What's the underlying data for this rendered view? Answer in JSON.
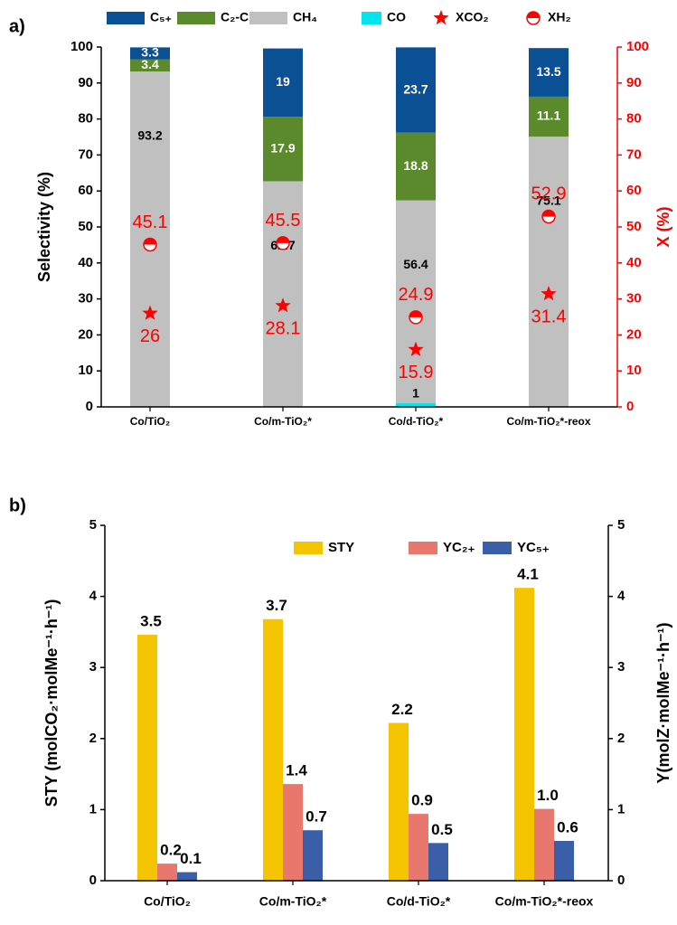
{
  "chart_data": [
    {
      "type": "stacked_bar",
      "panel_label": "a)",
      "categories": [
        "Co/TiO₂",
        "Co/m-TiO₂*",
        "Co/d-TiO₂*",
        "Co/m-TiO₂*-reox"
      ],
      "series": [
        {
          "name": "CO",
          "color": "#00e5ee",
          "label_color": "#000000",
          "values": [
            0,
            0,
            1,
            0
          ]
        },
        {
          "name": "CH₄",
          "color": "#c0c0c0",
          "label_color": "#000000",
          "values": [
            93.2,
            62.7,
            56.4,
            75.1
          ]
        },
        {
          "name": "C₂-C₄",
          "color": "#5b8a2d",
          "label_color": "#ffffff",
          "values": [
            3.4,
            17.9,
            18.8,
            11.1
          ]
        },
        {
          "name": "C₅₊",
          "color": "#0b4f95",
          "label_color": "#ffffff",
          "values": [
            3.3,
            19,
            23.7,
            13.5
          ]
        },
        {
          "name": "XCO₂",
          "type": "scatter",
          "axis": "y2",
          "marker": "star",
          "color": "#ff0000",
          "values": [
            26,
            28.1,
            15.9,
            31.4
          ]
        },
        {
          "name": "XH₂",
          "type": "scatter",
          "axis": "y2",
          "marker": "half-circle",
          "color": "#ff0000",
          "values": [
            45.1,
            45.5,
            24.9,
            52.9
          ]
        }
      ],
      "ylabel": "Selectivity (%)",
      "y2label": "X (%)",
      "y2color": "#ff0000",
      "ylim": [
        0,
        100
      ],
      "yticks": [
        0,
        10,
        20,
        30,
        40,
        50,
        60,
        70,
        80,
        90,
        100
      ],
      "y2lim": [
        0,
        100
      ],
      "y2ticks": [
        0,
        10,
        20,
        30,
        40,
        50,
        60,
        70,
        80,
        90,
        100
      ]
    },
    {
      "type": "bar",
      "panel_label": "b)",
      "categories": [
        "Co/TiO₂",
        "Co/m-TiO₂*",
        "Co/d-TiO₂*",
        "Co/m-TiO₂*-reox"
      ],
      "series": [
        {
          "name": "STY",
          "color": "#f5c400",
          "values": [
            3.46,
            3.68,
            2.22,
            4.12
          ],
          "value_labels": [
            "3.5",
            "3.7",
            "2.2",
            "4.1"
          ]
        },
        {
          "name": "YC₂₊",
          "color": "#e8786e",
          "values": [
            0.24,
            1.36,
            0.94,
            1.01
          ],
          "value_labels": [
            "0.2",
            "1.4",
            "0.9",
            "1.0"
          ]
        },
        {
          "name": "YC₅₊",
          "color": "#3a5fa8",
          "values": [
            0.12,
            0.71,
            0.53,
            0.56
          ],
          "value_labels": [
            "0.1",
            "0.7",
            "0.5",
            "0.6"
          ]
        }
      ],
      "ylabel": "STY (molCO₂·molMe⁻¹·h⁻¹)",
      "y2label": "Y(molZ·molMe⁻¹·h⁻¹)",
      "y2color": "#000000",
      "ylim": [
        0,
        5
      ],
      "yticks": [
        0,
        1,
        2,
        3,
        4,
        5
      ],
      "y2lim": [
        0,
        5
      ],
      "y2ticks": [
        0,
        1,
        2,
        3,
        4,
        5
      ]
    }
  ]
}
